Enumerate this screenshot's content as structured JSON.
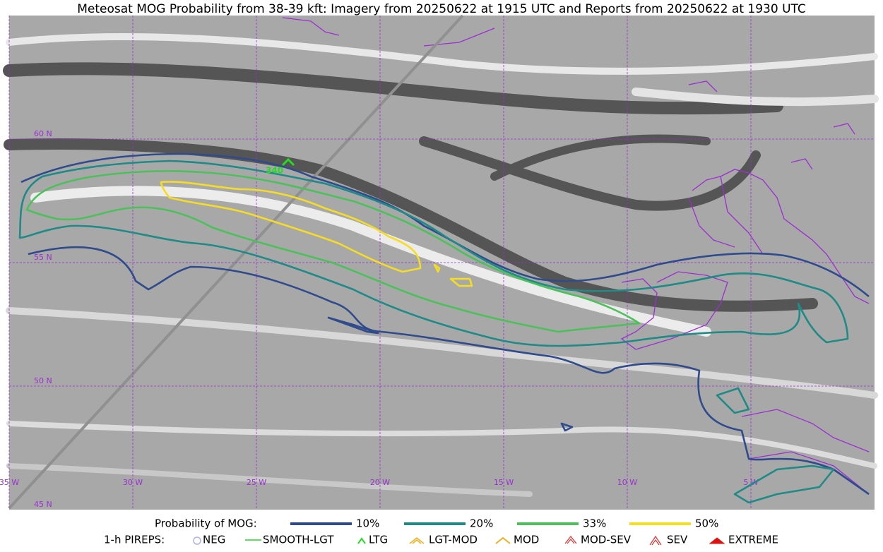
{
  "title": "Meteosat MOG Probability from 38-39 kft: Imagery from 20250622 at 1915 UTC and Reports from 20250622 at 1930 UTC",
  "map": {
    "lat_labels": [
      "60 N",
      "55 N",
      "50 N",
      "45 N"
    ],
    "lon_labels": [
      "35 W",
      "30 W",
      "25 W",
      "20 W",
      "15 W",
      "10 W",
      "5 W"
    ],
    "report_label": "340",
    "report_color": "#22dd22"
  },
  "legend": {
    "contour_title": "Probability of MOG:",
    "contours": [
      {
        "label": "10%",
        "color": "#2f4b8c"
      },
      {
        "label": "20%",
        "color": "#1f8a86"
      },
      {
        "label": "33%",
        "color": "#4cc05a"
      },
      {
        "label": "50%",
        "color": "#f5dc25"
      }
    ],
    "pirep_title": "1-h PIREPS:",
    "pireps": [
      {
        "label": "NEG",
        "color": "#b0b0f0"
      },
      {
        "label": "SMOOTH-LGT",
        "color": "#33cc33"
      },
      {
        "label": "LTG",
        "color": "#22dd22"
      },
      {
        "label": "LGT-MOD",
        "color": "#f0b020"
      },
      {
        "label": "MOD",
        "color": "#f0b020"
      },
      {
        "label": "MOD-SEV",
        "color": "#e03030"
      },
      {
        "label": "SEV",
        "color": "#e03030"
      },
      {
        "label": "EXTREME",
        "color": "#e01010"
      }
    ]
  }
}
